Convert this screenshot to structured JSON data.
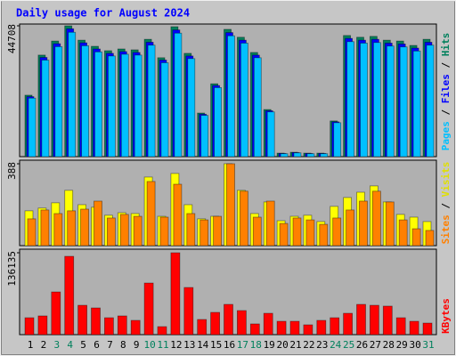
{
  "chart_data": [
    {
      "type": "bar",
      "title": "Daily usage for August 2024",
      "categories": [
        "1",
        "2",
        "3",
        "4",
        "5",
        "6",
        "7",
        "8",
        "9",
        "10",
        "11",
        "12",
        "13",
        "14",
        "15",
        "16",
        "17",
        "18",
        "19",
        "20",
        "21",
        "22",
        "23",
        "24",
        "25",
        "26",
        "27",
        "28",
        "29",
        "30",
        "31"
      ],
      "category_colors": [
        "#000000",
        "#000000",
        "#00805c",
        "#00805c",
        "#000000",
        "#000000",
        "#000000",
        "#000000",
        "#000000",
        "#00805c",
        "#00805c",
        "#000000",
        "#000000",
        "#000000",
        "#000000",
        "#000000",
        "#00805c",
        "#00805c",
        "#000000",
        "#000000",
        "#000000",
        "#000000",
        "#000000",
        "#00805c",
        "#00805c",
        "#000000",
        "#000000",
        "#000000",
        "#000000",
        "#000000",
        "#00805c"
      ],
      "ylim": [
        0,
        44708
      ],
      "yticks": [
        44708
      ],
      "series": [
        {
          "name": "Hits",
          "color": "#00805c",
          "values": [
            21000,
            34700,
            39500,
            44708,
            39800,
            37700,
            36200,
            36800,
            36500,
            40100,
            33800,
            44400,
            35300,
            14900,
            24900,
            43500,
            40800,
            35600,
            16100,
            1200,
            1500,
            1200,
            1200,
            12200,
            41400,
            40800,
            41100,
            39800,
            39500,
            38000,
            40100
          ]
        },
        {
          "name": "Files",
          "color": "#0000ff",
          "values": [
            20500,
            33900,
            38600,
            43700,
            38900,
            36800,
            35300,
            35900,
            35600,
            39100,
            33000,
            43300,
            34400,
            14500,
            24300,
            42400,
            39800,
            34700,
            15700,
            1100,
            1400,
            1100,
            1100,
            11900,
            40400,
            39800,
            40100,
            38800,
            38500,
            37100,
            39100
          ]
        },
        {
          "name": "Pages",
          "color": "#00c0ff",
          "values": [
            20000,
            33000,
            37600,
            42500,
            37900,
            35800,
            34400,
            35000,
            34700,
            38100,
            32100,
            42200,
            33500,
            14100,
            23600,
            41300,
            38800,
            33800,
            15300,
            1000,
            1300,
            1000,
            1000,
            11600,
            39300,
            38800,
            39000,
            37800,
            37500,
            36100,
            38100
          ]
        }
      ]
    },
    {
      "type": "bar",
      "ylim": [
        0,
        388
      ],
      "yticks": [
        388
      ],
      "series": [
        {
          "name": "Visits",
          "color": "#ffff00",
          "values": [
            165,
            178,
            203,
            262,
            194,
            182,
            144,
            156,
            152,
            325,
            139,
            342,
            194,
            127,
            139,
            388,
            262,
            152,
            207,
            118,
            139,
            144,
            114,
            186,
            228,
            253,
            283,
            207,
            148,
            135,
            114
          ]
        },
        {
          "name": "Sites",
          "color": "#ff8000",
          "values": [
            127,
            169,
            152,
            165,
            173,
            211,
            131,
            148,
            139,
            304,
            135,
            291,
            152,
            122,
            139,
            388,
            258,
            135,
            211,
            105,
            131,
            122,
            101,
            131,
            169,
            211,
            258,
            207,
            122,
            80,
            72
          ]
        }
      ]
    },
    {
      "type": "bar",
      "ylim": [
        0,
        136135
      ],
      "yticks": [
        136135
      ],
      "series": [
        {
          "name": "KBytes",
          "color": "#ff0000",
          "values": [
            28100,
            31100,
            71000,
            130200,
            48800,
            44400,
            28100,
            31100,
            23700,
            85800,
            13300,
            136135,
            78400,
            25200,
            37000,
            50300,
            40000,
            17800,
            35500,
            22200,
            22200,
            16300,
            23700,
            28100,
            35500,
            50300,
            48800,
            47400,
            28100,
            22200,
            19200
          ]
        }
      ]
    }
  ]
}
